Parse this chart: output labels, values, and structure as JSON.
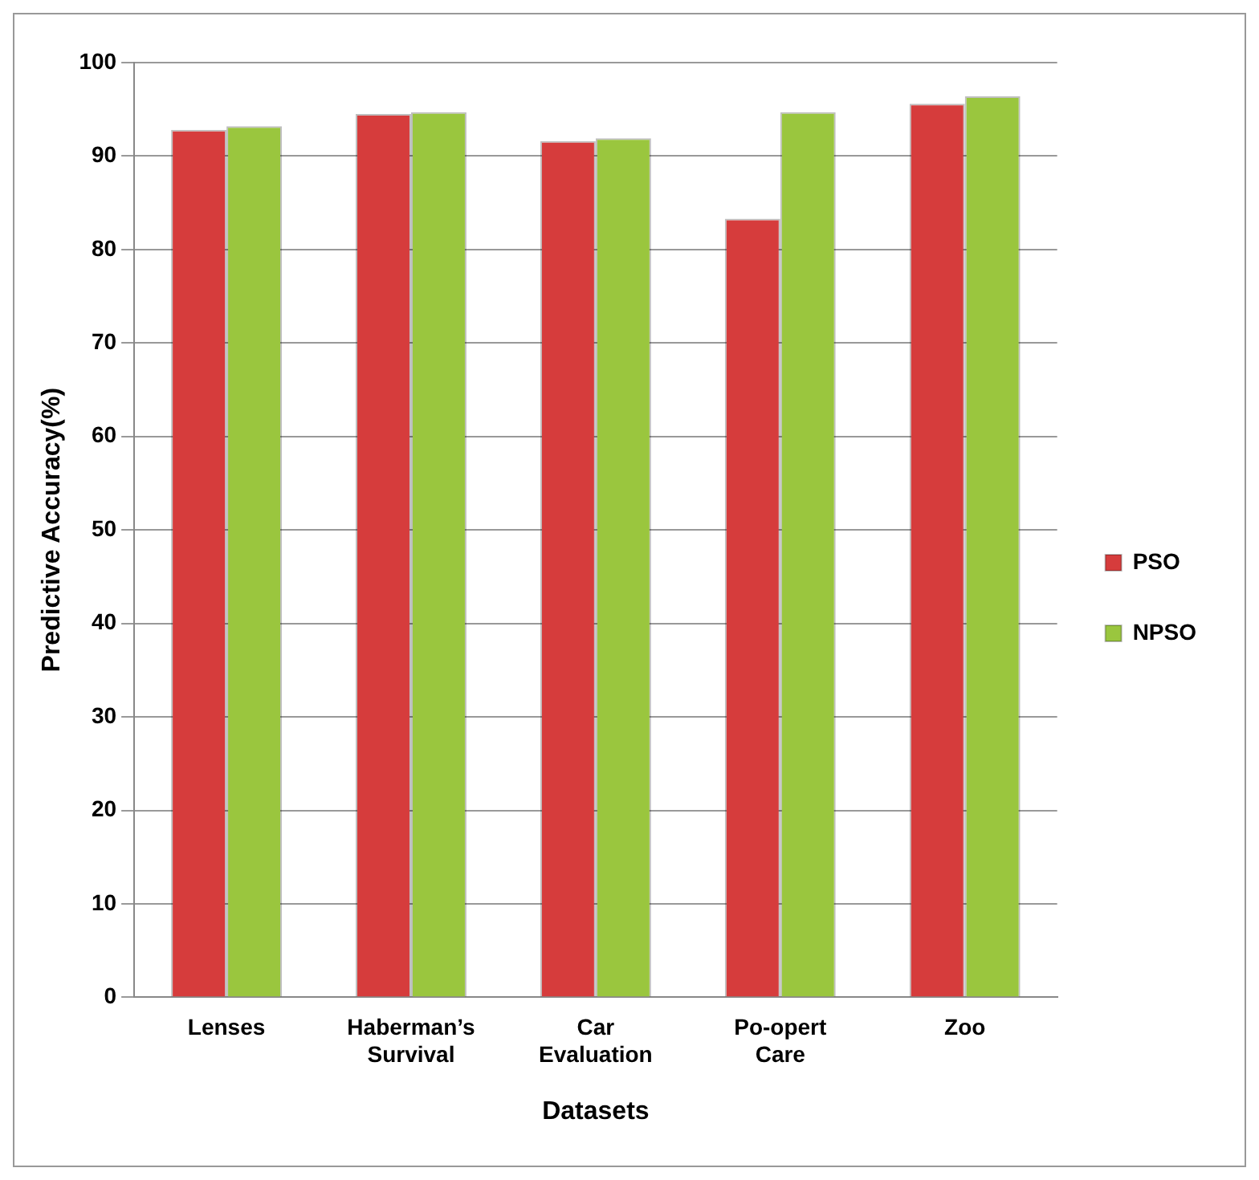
{
  "chart_data": {
    "type": "bar",
    "xlabel": "Datasets",
    "ylabel": "Predictive Accuracy(%)",
    "categories": [
      "Lenses",
      "Haberman’s Survival",
      "Car Evaluation",
      "Po-opert Care",
      "Zoo"
    ],
    "series": [
      {
        "name": "PSO",
        "color": "#d63c3c",
        "values": [
          92.8,
          94.5,
          91.6,
          83.3,
          95.6
        ]
      },
      {
        "name": "NPSO",
        "color": "#9ac63e",
        "values": [
          93.2,
          94.7,
          91.9,
          94.7,
          96.4
        ]
      }
    ],
    "ylim": [
      0,
      100
    ],
    "yticks": [
      0,
      10,
      20,
      30,
      40,
      50,
      60,
      70,
      80,
      90,
      100
    ],
    "grid": "y",
    "legend": "right"
  }
}
